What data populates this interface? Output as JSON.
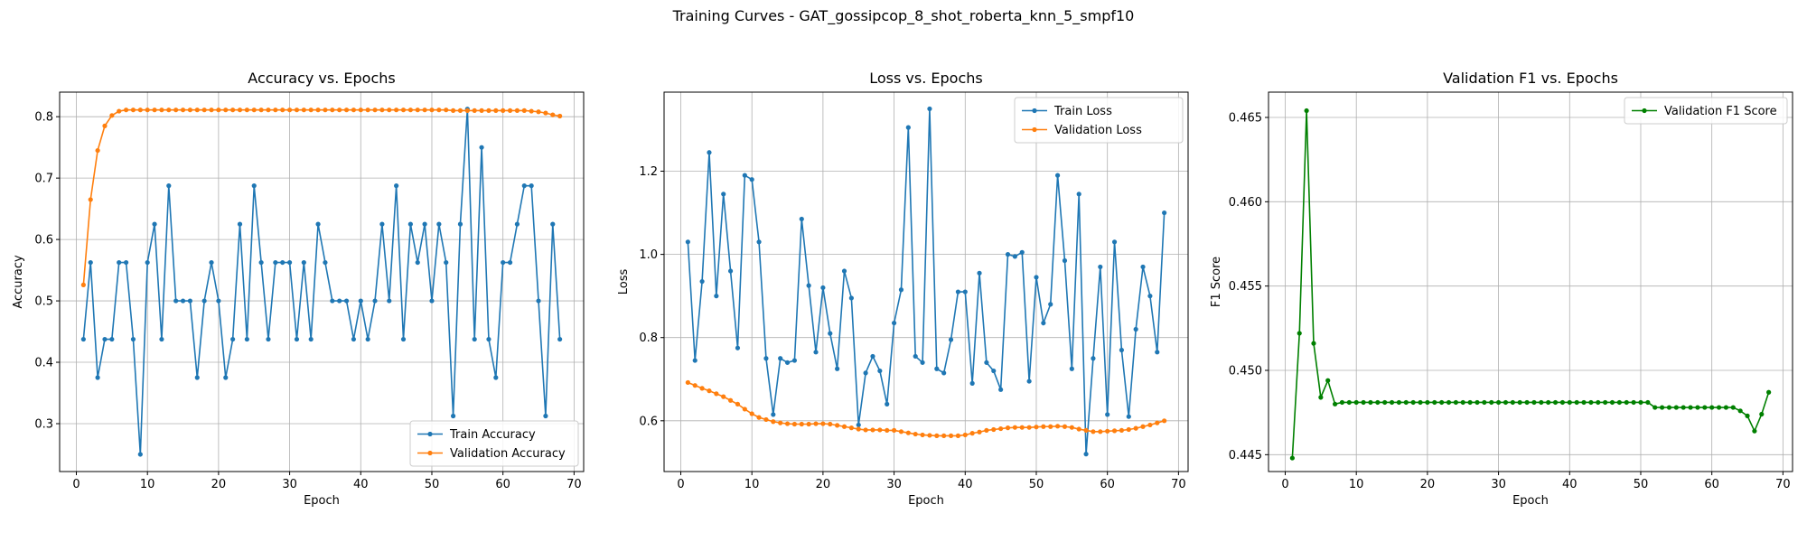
{
  "suptitle": "Training Curves - GAT_gossipcop_8_shot_roberta_knn_5_smpf10",
  "chart_data": [
    {
      "type": "line",
      "title": "Accuracy vs. Epochs",
      "xlabel": "Epoch",
      "ylabel": "Accuracy",
      "xlim": [
        -2.35,
        71.35
      ],
      "ylim": [
        0.222,
        0.84
      ],
      "xticks": [
        0,
        10,
        20,
        30,
        40,
        50,
        60,
        70
      ],
      "yticks": [
        0.3,
        0.4,
        0.5,
        0.6,
        0.7,
        0.8
      ],
      "tick_decimals": 1,
      "grid": true,
      "legend_position": "lower-right",
      "x_start": 1,
      "series": [
        {
          "name": "Train Accuracy",
          "color": "#1f77b4",
          "values": [
            0.4375,
            0.5625,
            0.375,
            0.4375,
            0.4375,
            0.5625,
            0.5625,
            0.4375,
            0.25,
            0.5625,
            0.625,
            0.4375,
            0.6875,
            0.5,
            0.5,
            0.5,
            0.375,
            0.5,
            0.5625,
            0.5,
            0.375,
            0.4375,
            0.625,
            0.4375,
            0.6875,
            0.5625,
            0.4375,
            0.5625,
            0.5625,
            0.5625,
            0.4375,
            0.5625,
            0.4375,
            0.625,
            0.5625,
            0.5,
            0.5,
            0.5,
            0.4375,
            0.5,
            0.4375,
            0.5,
            0.625,
            0.5,
            0.6875,
            0.4375,
            0.625,
            0.5625,
            0.625,
            0.5,
            0.625,
            0.5625,
            0.3125,
            0.625,
            0.8125,
            0.4375,
            0.75,
            0.4375,
            0.375,
            0.5625,
            0.5625,
            0.625,
            0.6875,
            0.6875,
            0.5,
            0.3125,
            0.625,
            0.4375
          ]
        },
        {
          "name": "Validation Accuracy",
          "color": "#ff7f0e",
          "values": [
            0.526,
            0.665,
            0.745,
            0.785,
            0.802,
            0.809,
            0.811,
            0.811,
            0.811,
            0.811,
            0.811,
            0.811,
            0.811,
            0.811,
            0.811,
            0.811,
            0.811,
            0.811,
            0.811,
            0.811,
            0.811,
            0.811,
            0.811,
            0.811,
            0.811,
            0.811,
            0.811,
            0.811,
            0.811,
            0.811,
            0.811,
            0.811,
            0.811,
            0.811,
            0.811,
            0.811,
            0.811,
            0.811,
            0.811,
            0.811,
            0.811,
            0.811,
            0.811,
            0.811,
            0.811,
            0.811,
            0.811,
            0.811,
            0.811,
            0.811,
            0.811,
            0.811,
            0.81,
            0.81,
            0.81,
            0.81,
            0.81,
            0.81,
            0.81,
            0.81,
            0.81,
            0.81,
            0.81,
            0.809,
            0.808,
            0.806,
            0.803,
            0.801
          ]
        }
      ]
    },
    {
      "type": "line",
      "title": "Loss vs. Epochs",
      "xlabel": "Epoch",
      "ylabel": "Loss",
      "xlim": [
        -2.35,
        71.35
      ],
      "ylim": [
        0.478,
        1.39
      ],
      "xticks": [
        0,
        10,
        20,
        30,
        40,
        50,
        60,
        70
      ],
      "yticks": [
        0.6,
        0.8,
        1.0,
        1.2
      ],
      "tick_decimals": 1,
      "grid": true,
      "legend_position": "upper-right",
      "x_start": 1,
      "series": [
        {
          "name": "Train Loss",
          "color": "#1f77b4",
          "values": [
            1.03,
            0.745,
            0.935,
            1.245,
            0.9,
            1.145,
            0.96,
            0.775,
            1.19,
            1.18,
            1.03,
            0.75,
            0.615,
            0.75,
            0.74,
            0.745,
            1.085,
            0.925,
            0.765,
            0.92,
            0.81,
            0.725,
            0.96,
            0.895,
            0.59,
            0.715,
            0.755,
            0.72,
            0.64,
            0.835,
            0.915,
            1.305,
            0.755,
            0.74,
            1.35,
            0.725,
            0.715,
            0.795,
            0.91,
            0.91,
            0.69,
            0.955,
            0.74,
            0.72,
            0.675,
            1.0,
            0.995,
            1.005,
            0.695,
            0.945,
            0.835,
            0.88,
            1.19,
            0.985,
            0.725,
            1.145,
            0.52,
            0.75,
            0.97,
            0.615,
            1.03,
            0.77,
            0.61,
            0.82,
            0.97,
            0.9,
            0.765,
            1.1
          ]
        },
        {
          "name": "Validation Loss",
          "color": "#ff7f0e",
          "values": [
            0.692,
            0.685,
            0.678,
            0.672,
            0.665,
            0.658,
            0.649,
            0.64,
            0.628,
            0.617,
            0.608,
            0.603,
            0.598,
            0.595,
            0.593,
            0.592,
            0.592,
            0.592,
            0.593,
            0.593,
            0.592,
            0.589,
            0.586,
            0.583,
            0.58,
            0.578,
            0.578,
            0.578,
            0.577,
            0.577,
            0.574,
            0.571,
            0.568,
            0.566,
            0.565,
            0.564,
            0.564,
            0.564,
            0.564,
            0.566,
            0.57,
            0.573,
            0.577,
            0.579,
            0.581,
            0.583,
            0.584,
            0.584,
            0.584,
            0.585,
            0.586,
            0.586,
            0.587,
            0.586,
            0.584,
            0.58,
            0.577,
            0.574,
            0.574,
            0.575,
            0.576,
            0.577,
            0.579,
            0.582,
            0.586,
            0.59,
            0.595,
            0.6
          ]
        }
      ]
    },
    {
      "type": "line",
      "title": "Validation F1 vs. Epochs",
      "xlabel": "Epoch",
      "ylabel": "F1 Score",
      "xlim": [
        -2.35,
        71.35
      ],
      "ylim": [
        0.444,
        0.4665
      ],
      "xticks": [
        0,
        10,
        20,
        30,
        40,
        50,
        60,
        70
      ],
      "yticks": [
        0.445,
        0.45,
        0.455,
        0.46,
        0.465
      ],
      "tick_decimals": 3,
      "grid": true,
      "legend_position": "upper-right",
      "x_start": 1,
      "series": [
        {
          "name": "Validation F1 Score",
          "color": "#008000",
          "values": [
            0.4448,
            0.4522,
            0.4654,
            0.4516,
            0.4484,
            0.4494,
            0.448,
            0.4481,
            0.4481,
            0.4481,
            0.4481,
            0.4481,
            0.4481,
            0.4481,
            0.4481,
            0.4481,
            0.4481,
            0.4481,
            0.4481,
            0.4481,
            0.4481,
            0.4481,
            0.4481,
            0.4481,
            0.4481,
            0.4481,
            0.4481,
            0.4481,
            0.4481,
            0.4481,
            0.4481,
            0.4481,
            0.4481,
            0.4481,
            0.4481,
            0.4481,
            0.4481,
            0.4481,
            0.4481,
            0.4481,
            0.4481,
            0.4481,
            0.4481,
            0.4481,
            0.4481,
            0.4481,
            0.4481,
            0.4481,
            0.4481,
            0.4481,
            0.4481,
            0.4478,
            0.4478,
            0.4478,
            0.4478,
            0.4478,
            0.4478,
            0.4478,
            0.4478,
            0.4478,
            0.4478,
            0.4478,
            0.4478,
            0.4476,
            0.4473,
            0.4464,
            0.4474,
            0.4487
          ]
        }
      ]
    }
  ]
}
